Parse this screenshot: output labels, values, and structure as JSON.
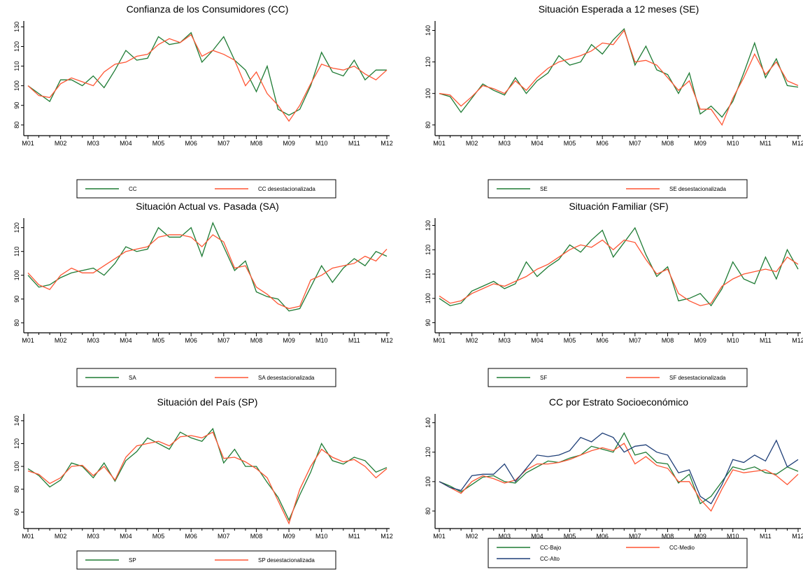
{
  "chart_data": [
    {
      "type": "line",
      "title": "Confianza de los Consumidores (CC)",
      "categories": [
        "M01",
        null,
        null,
        "M02",
        null,
        null,
        "M03",
        null,
        null,
        "M04",
        null,
        null,
        "M05",
        null,
        null,
        "M06",
        null,
        null,
        "M07",
        null,
        null,
        "M08",
        null,
        null,
        "M09",
        null,
        null,
        "M10",
        null,
        null,
        "M11",
        null,
        null,
        "M12"
      ],
      "ylim": [
        76,
        133
      ],
      "yticks": [
        80,
        90,
        100,
        110,
        120,
        130
      ],
      "series": [
        {
          "name": "CC",
          "color": "#1e7b34",
          "values": [
            100,
            96,
            92,
            103,
            103,
            100,
            105,
            99,
            108,
            118,
            113,
            114,
            125,
            121,
            122,
            127,
            112,
            118,
            125,
            113,
            108,
            97,
            110,
            88,
            85,
            88,
            100,
            117,
            107,
            105,
            113,
            103,
            108,
            108
          ]
        },
        {
          "name": "CC desestacionalizada",
          "color": "#ff5533",
          "values": [
            100,
            95,
            94,
            101,
            104,
            102,
            100,
            107,
            111,
            112,
            115,
            116,
            121,
            124,
            122,
            126,
            115,
            118,
            116,
            113,
            100,
            107,
            96,
            90,
            82,
            90,
            101,
            111,
            109,
            108,
            110,
            106,
            103,
            108
          ]
        }
      ]
    },
    {
      "type": "line",
      "title": "Situación Esperada a 12 meses (SE)",
      "categories": [
        "M01",
        null,
        null,
        "M02",
        null,
        null,
        "M03",
        null,
        null,
        "M04",
        null,
        null,
        "M05",
        null,
        null,
        "M06",
        null,
        null,
        "M07",
        null,
        null,
        "M08",
        null,
        null,
        "M09",
        null,
        null,
        "M10",
        null,
        null,
        "M11",
        null,
        null,
        "M12"
      ],
      "ylim": [
        75,
        146
      ],
      "yticks": [
        80,
        100,
        120,
        140
      ],
      "series": [
        {
          "name": "SE",
          "color": "#1e7b34",
          "values": [
            100,
            98,
            88,
            97,
            106,
            102,
            99,
            110,
            100,
            108,
            113,
            124,
            118,
            120,
            131,
            125,
            134,
            141,
            118,
            130,
            115,
            112,
            100,
            113,
            87,
            92,
            85,
            95,
            113,
            132,
            110,
            122,
            105,
            104
          ]
        },
        {
          "name": "SE desestacionalizada",
          "color": "#ff5533",
          "values": [
            100,
            99,
            92,
            98,
            105,
            103,
            100,
            108,
            102,
            110,
            116,
            120,
            122,
            124,
            127,
            132,
            131,
            140,
            120,
            121,
            118,
            110,
            102,
            108,
            90,
            90,
            80,
            97,
            110,
            125,
            112,
            120,
            108,
            105
          ]
        }
      ]
    },
    {
      "type": "line",
      "title": "Situación Actual vs. Pasada (SA)",
      "categories": [
        "M01",
        null,
        null,
        "M02",
        null,
        null,
        "M03",
        null,
        null,
        "M04",
        null,
        null,
        "M05",
        null,
        null,
        "M06",
        null,
        null,
        "M07",
        null,
        null,
        "M08",
        null,
        null,
        "M09",
        null,
        null,
        "M10",
        null,
        null,
        "M11",
        null,
        null,
        "M12"
      ],
      "ylim": [
        77,
        124
      ],
      "yticks": [
        80,
        90,
        100,
        110,
        120
      ],
      "series": [
        {
          "name": "SA",
          "color": "#1e7b34",
          "values": [
            100,
            95,
            96,
            99,
            101,
            102,
            103,
            100,
            105,
            112,
            110,
            111,
            120,
            116,
            116,
            120,
            108,
            122,
            112,
            102,
            106,
            93,
            91,
            90,
            85,
            86,
            95,
            104,
            97,
            103,
            107,
            104,
            110,
            108
          ]
        },
        {
          "name": "SA desestacionalizada",
          "color": "#ff5533",
          "values": [
            101,
            96,
            94,
            100,
            103,
            101,
            101,
            104,
            107,
            110,
            111,
            112,
            116,
            117,
            117,
            116,
            112,
            117,
            114,
            103,
            104,
            95,
            92,
            88,
            86,
            87,
            98,
            100,
            103,
            104,
            105,
            108,
            106,
            111
          ]
        }
      ]
    },
    {
      "type": "line",
      "title": "Situación Familiar (SF)",
      "categories": [
        "M01",
        null,
        null,
        "M02",
        null,
        null,
        "M03",
        null,
        null,
        "M04",
        null,
        null,
        "M05",
        null,
        null,
        "M06",
        null,
        null,
        "M07",
        null,
        null,
        "M08",
        null,
        null,
        "M09",
        null,
        null,
        "M10",
        null,
        null,
        "M11",
        null,
        null,
        "M12"
      ],
      "ylim": [
        87,
        133
      ],
      "yticks": [
        90,
        100,
        110,
        120,
        130
      ],
      "series": [
        {
          "name": "SF",
          "color": "#1e7b34",
          "values": [
            100,
            97,
            98,
            103,
            105,
            107,
            104,
            106,
            115,
            109,
            113,
            116,
            122,
            119,
            124,
            128,
            117,
            123,
            129,
            118,
            109,
            113,
            99,
            100,
            102,
            97,
            104,
            115,
            108,
            106,
            117,
            108,
            120,
            112
          ]
        },
        {
          "name": "SF desestacionalizada",
          "color": "#ff5533",
          "values": [
            101,
            98,
            99,
            102,
            104,
            106,
            105,
            107,
            109,
            112,
            114,
            117,
            120,
            122,
            121,
            124,
            120,
            124,
            123,
            116,
            110,
            112,
            102,
            99,
            97,
            98,
            105,
            108,
            110,
            111,
            112,
            111,
            117,
            114
          ]
        }
      ]
    },
    {
      "type": "line",
      "title": "Situación del País (SP)",
      "categories": [
        "M01",
        null,
        null,
        "M02",
        null,
        null,
        "M03",
        null,
        null,
        "M04",
        null,
        null,
        "M05",
        null,
        null,
        "M06",
        null,
        null,
        "M07",
        null,
        null,
        "M08",
        null,
        null,
        "M09",
        null,
        null,
        "M10",
        null,
        null,
        "M11",
        null,
        null,
        "M12"
      ],
      "ylim": [
        48,
        146
      ],
      "yticks": [
        60,
        80,
        100,
        120,
        140
      ],
      "series": [
        {
          "name": "SP",
          "color": "#1e7b34",
          "values": [
            98,
            92,
            82,
            88,
            103,
            100,
            90,
            103,
            87,
            105,
            113,
            125,
            120,
            115,
            130,
            125,
            122,
            133,
            103,
            115,
            100,
            100,
            86,
            73,
            53,
            75,
            95,
            120,
            105,
            102,
            108,
            105,
            95,
            99
          ]
        },
        {
          "name": "SP desestacionalizada",
          "color": "#ff5533",
          "values": [
            96,
            93,
            85,
            90,
            100,
            101,
            92,
            100,
            88,
            108,
            118,
            120,
            122,
            118,
            126,
            127,
            125,
            130,
            107,
            108,
            104,
            98,
            90,
            70,
            50,
            80,
            100,
            115,
            108,
            104,
            106,
            100,
            90,
            98
          ]
        }
      ]
    },
    {
      "type": "line",
      "title": "CC por Estrato Socioeconómico",
      "categories": [
        "M01",
        null,
        null,
        "M02",
        null,
        null,
        "M03",
        null,
        null,
        "M04",
        null,
        null,
        "M05",
        null,
        null,
        "M06",
        null,
        null,
        "M07",
        null,
        null,
        "M08",
        null,
        null,
        "M09",
        null,
        null,
        "M10",
        null,
        null,
        "M11",
        null,
        null,
        "M12"
      ],
      "ylim": [
        70,
        146
      ],
      "yticks": [
        80,
        100,
        120,
        140
      ],
      "series": [
        {
          "name": "CC-Bajo",
          "color": "#1e7b34",
          "values": [
            100,
            97,
            93,
            98,
            103,
            104,
            100,
            99,
            106,
            110,
            114,
            113,
            116,
            118,
            124,
            122,
            120,
            133,
            118,
            120,
            113,
            112,
            99,
            105,
            85,
            90,
            100,
            110,
            108,
            110,
            106,
            105,
            110,
            107
          ]
        },
        {
          "name": "CC-Medio",
          "color": "#ff5533",
          "values": [
            100,
            96,
            92,
            100,
            104,
            102,
            99,
            101,
            108,
            112,
            112,
            113,
            115,
            118,
            121,
            123,
            121,
            126,
            112,
            117,
            111,
            109,
            100,
            100,
            88,
            80,
            95,
            108,
            106,
            107,
            108,
            104,
            98,
            105
          ]
        },
        {
          "name": "CC-Alto",
          "color": "#1f3f78",
          "values": [
            100,
            96,
            94,
            104,
            105,
            105,
            112,
            100,
            109,
            118,
            117,
            118,
            121,
            130,
            127,
            133,
            130,
            120,
            124,
            125,
            120,
            118,
            106,
            108,
            90,
            85,
            98,
            115,
            113,
            118,
            114,
            128,
            110,
            115
          ]
        }
      ]
    }
  ]
}
